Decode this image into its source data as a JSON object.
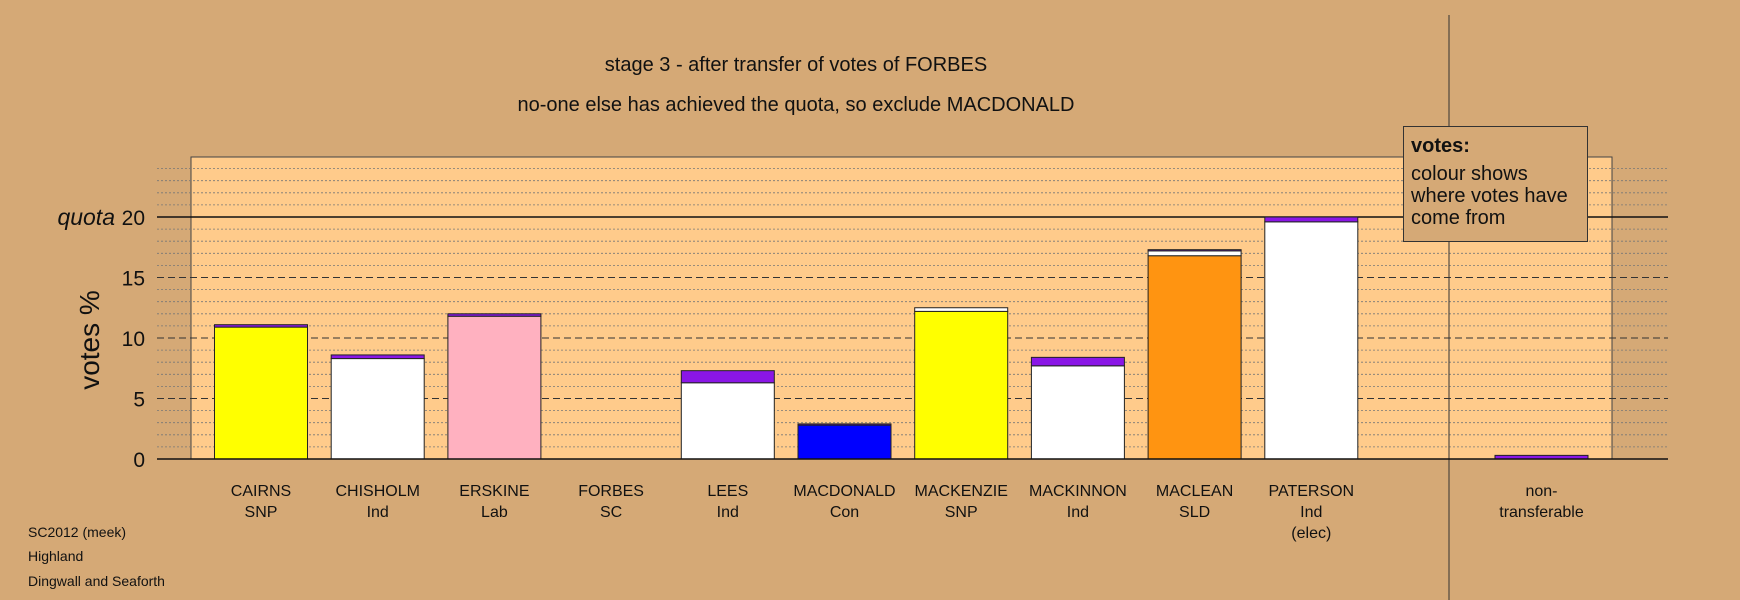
{
  "title": "stage 3 - after transfer of votes of FORBES",
  "subtitle": "no-one else has achieved the quota, so exclude MACDONALD",
  "legend": {
    "title": "votes:",
    "text": "colour shows where votes have come from"
  },
  "footer": {
    "line1": "SC2012 (meek)",
    "line2": "Highland",
    "line3": "Dingwall and Seaforth"
  },
  "colors": {
    "background": "#d5a976",
    "plot": "#ffcb8b",
    "snp": "#ffff00",
    "ind": "#ffffff",
    "lab": "#ffb1c0",
    "con": "#0000ff",
    "sld": "#ff9411",
    "transfer": "#8a16e6"
  },
  "chart_data": {
    "type": "bar",
    "stacked": true,
    "ylabel": "votes %",
    "ylim": [
      0,
      25
    ],
    "yticks": [
      0,
      5,
      10,
      15,
      20
    ],
    "quota": {
      "label": "quota",
      "value": 20
    },
    "categories": [
      {
        "name": "CAIRNS",
        "party": "SNP",
        "extra": "",
        "segments": [
          {
            "value": 10.9,
            "color": "#ffff00"
          },
          {
            "value": 0.2,
            "color": "#8a16e6"
          }
        ]
      },
      {
        "name": "CHISHOLM",
        "party": "Ind",
        "extra": "",
        "segments": [
          {
            "value": 8.3,
            "color": "#ffffff"
          },
          {
            "value": 0.3,
            "color": "#8a16e6"
          }
        ]
      },
      {
        "name": "ERSKINE",
        "party": "Lab",
        "extra": "",
        "segments": [
          {
            "value": 11.8,
            "color": "#ffb1c0"
          },
          {
            "value": 0.2,
            "color": "#8a16e6"
          }
        ]
      },
      {
        "name": "FORBES",
        "party": "SC",
        "extra": "",
        "segments": []
      },
      {
        "name": "LEES",
        "party": "Ind",
        "extra": "",
        "segments": [
          {
            "value": 6.3,
            "color": "#ffffff"
          },
          {
            "value": 1.0,
            "color": "#8a16e6"
          }
        ]
      },
      {
        "name": "MACDONALD",
        "party": "Con",
        "extra": "",
        "segments": [
          {
            "value": 2.8,
            "color": "#0000ff"
          },
          {
            "value": 0.1,
            "color": "#8a16e6"
          }
        ]
      },
      {
        "name": "MACKENZIE",
        "party": "SNP",
        "extra": "",
        "segments": [
          {
            "value": 12.2,
            "color": "#ffff00"
          },
          {
            "value": 0.3,
            "color": "#ffffff"
          }
        ]
      },
      {
        "name": "MACKINNON",
        "party": "Ind",
        "extra": "",
        "segments": [
          {
            "value": 7.7,
            "color": "#ffffff"
          },
          {
            "value": 0.7,
            "color": "#8a16e6"
          }
        ]
      },
      {
        "name": "MACLEAN",
        "party": "SLD",
        "extra": "",
        "segments": [
          {
            "value": 16.8,
            "color": "#ff9411"
          },
          {
            "value": 0.4,
            "color": "#ffffff"
          },
          {
            "value": 0.1,
            "color": "#8a16e6"
          }
        ]
      },
      {
        "name": "PATERSON",
        "party": "Ind",
        "extra": "(elec)",
        "segments": [
          {
            "value": 19.6,
            "color": "#ffffff"
          },
          {
            "value": 0.4,
            "color": "#8a16e6"
          }
        ]
      }
    ],
    "nontransferable": {
      "label1": "non-",
      "label2": "transferable",
      "value": 0.3,
      "color": "#8a16e6"
    }
  }
}
